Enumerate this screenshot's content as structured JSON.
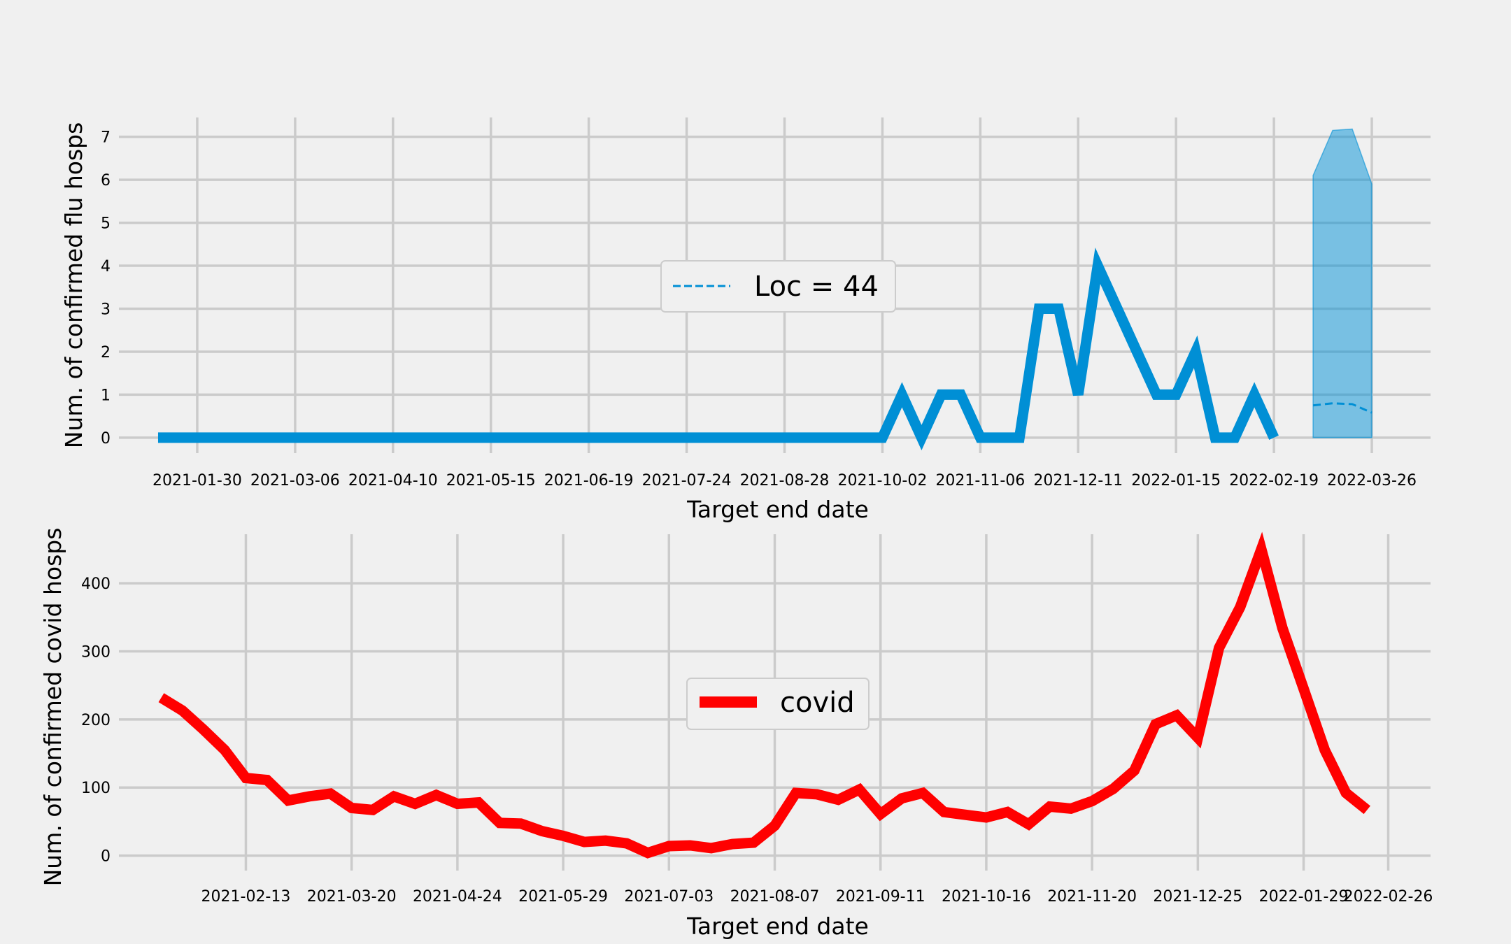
{
  "chart_data": [
    {
      "type": "line",
      "ylabel": "Num. of confirmed flu hosps",
      "xlabel": "Target end date",
      "ylim": [
        -0.36,
        7.45
      ],
      "xlim": [
        "2021-01-02",
        "2022-04-16"
      ],
      "x_ticks": [
        "2021-01-30",
        "2021-03-06",
        "2021-04-10",
        "2021-05-15",
        "2021-06-19",
        "2021-07-24",
        "2021-08-28",
        "2021-10-02",
        "2021-11-06",
        "2021-12-11",
        "2022-01-15",
        "2022-02-19",
        "2022-03-26"
      ],
      "y_ticks": [
        0,
        1,
        2,
        3,
        4,
        5,
        6,
        7
      ],
      "grid": true,
      "legend": {
        "position": "center",
        "entries": [
          "Loc = 44"
        ]
      },
      "colors": {
        "observed": "#008fd5",
        "forecast_band": "#008fd5"
      },
      "series": [
        {
          "name": "",
          "style": "solid",
          "x": [
            "2021-01-16",
            "2021-01-23",
            "2021-01-30",
            "2021-02-06",
            "2021-02-13",
            "2021-02-20",
            "2021-02-27",
            "2021-03-06",
            "2021-03-13",
            "2021-03-20",
            "2021-03-27",
            "2021-04-03",
            "2021-04-10",
            "2021-04-17",
            "2021-04-24",
            "2021-05-01",
            "2021-05-08",
            "2021-05-15",
            "2021-05-22",
            "2021-05-29",
            "2021-06-05",
            "2021-06-12",
            "2021-06-19",
            "2021-06-26",
            "2021-07-03",
            "2021-07-10",
            "2021-07-17",
            "2021-07-24",
            "2021-07-31",
            "2021-08-07",
            "2021-08-14",
            "2021-08-21",
            "2021-08-28",
            "2021-09-04",
            "2021-09-11",
            "2021-09-18",
            "2021-09-25",
            "2021-10-02",
            "2021-10-09",
            "2021-10-16",
            "2021-10-23",
            "2021-10-30",
            "2021-11-06",
            "2021-11-13",
            "2021-11-20",
            "2021-11-27",
            "2021-12-04",
            "2021-12-11",
            "2021-12-18",
            "2021-12-25",
            "2022-01-01",
            "2022-01-08",
            "2022-01-15",
            "2022-01-22",
            "2022-01-29",
            "2022-02-05",
            "2022-02-12",
            "2022-02-19",
            "2022-02-26"
          ],
          "y": [
            0,
            0,
            0,
            0,
            0,
            0,
            0,
            0,
            0,
            0,
            0,
            0,
            0,
            0,
            0,
            0,
            0,
            0,
            0,
            0,
            0,
            0,
            0,
            0,
            0,
            0,
            0,
            0,
            0,
            0,
            0,
            0,
            0,
            0,
            0,
            0,
            0,
            0,
            1,
            0,
            1,
            1,
            0,
            0,
            0,
            3,
            3,
            1,
            4,
            3,
            2,
            1,
            1,
            2,
            0,
            0,
            1,
            0,
            null
          ]
        },
        {
          "name": "Loc = 44",
          "style": "dashed",
          "x": [
            "2022-03-05",
            "2022-03-12",
            "2022-03-19",
            "2022-03-26"
          ],
          "y": [
            0.75,
            0.8,
            0.78,
            0.58
          ],
          "band_low": [
            0,
            0,
            0,
            0
          ],
          "band_high": [
            6.1,
            7.15,
            7.18,
            5.9
          ]
        }
      ]
    },
    {
      "type": "line",
      "ylabel": "Num. of confirmed covid hosps",
      "xlabel": "Target end date",
      "ylim": [
        -22,
        472
      ],
      "xlim": [
        "2021-01-02",
        "2022-03-12"
      ],
      "x_ticks": [
        "2021-02-13",
        "2021-03-20",
        "2021-04-24",
        "2021-05-29",
        "2021-07-03",
        "2021-08-07",
        "2021-09-11",
        "2021-10-16",
        "2021-11-20",
        "2021-12-25",
        "2022-01-29",
        "2022-02-26"
      ],
      "y_ticks": [
        0,
        100,
        200,
        300,
        400
      ],
      "grid": true,
      "legend": {
        "position": "center",
        "entries": [
          "covid"
        ]
      },
      "colors": {
        "covid": "#ff0000"
      },
      "series": [
        {
          "name": "covid",
          "x": [
            "2021-01-16",
            "2021-01-23",
            "2021-01-30",
            "2021-02-06",
            "2021-02-13",
            "2021-02-20",
            "2021-02-27",
            "2021-03-06",
            "2021-03-13",
            "2021-03-20",
            "2021-03-27",
            "2021-04-03",
            "2021-04-10",
            "2021-04-17",
            "2021-04-24",
            "2021-05-01",
            "2021-05-08",
            "2021-05-15",
            "2021-05-22",
            "2021-05-29",
            "2021-06-05",
            "2021-06-12",
            "2021-06-19",
            "2021-06-26",
            "2021-07-03",
            "2021-07-10",
            "2021-07-17",
            "2021-07-24",
            "2021-07-31",
            "2021-08-07",
            "2021-08-14",
            "2021-08-21",
            "2021-08-28",
            "2021-09-04",
            "2021-09-11",
            "2021-09-18",
            "2021-09-25",
            "2021-10-02",
            "2021-10-09",
            "2021-10-16",
            "2021-10-23",
            "2021-10-30",
            "2021-11-06",
            "2021-11-13",
            "2021-11-20",
            "2021-11-27",
            "2021-12-04",
            "2021-12-11",
            "2021-12-18",
            "2021-12-25",
            "2022-01-01",
            "2022-01-08",
            "2022-01-15",
            "2022-01-22",
            "2022-01-29",
            "2022-02-05",
            "2022-02-12",
            "2022-02-19",
            "2022-02-26"
          ],
          "y": [
            232,
            213,
            185,
            155,
            114,
            111,
            81,
            87,
            91,
            70,
            67,
            87,
            76,
            89,
            76,
            78,
            48,
            47,
            36,
            29,
            20,
            22,
            18,
            4,
            14,
            15,
            11,
            17,
            19,
            44,
            92,
            90,
            82,
            97,
            61,
            84,
            92,
            64,
            60,
            56,
            64,
            46,
            72,
            69,
            80,
            98,
            125,
            193,
            206,
            173,
            305,
            365,
            450,
            334,
            245,
            155,
            92,
            67,
            null
          ]
        }
      ]
    }
  ]
}
